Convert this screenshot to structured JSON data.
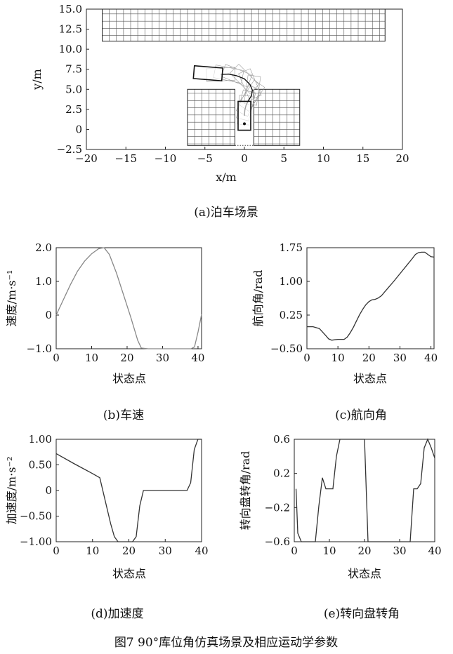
{
  "figure_caption": "图7   90°库位角仿真场景及相应运动学参数",
  "chart_data": [
    {
      "id": "a",
      "type": "diagram",
      "caption": "(a)泊车场景",
      "xlabel": "x/m",
      "ylabel": "y/m",
      "xlim": [
        -20,
        20
      ],
      "ylim": [
        -2.5,
        15
      ],
      "xticks": [
        -20,
        -15,
        -10,
        -5,
        0,
        5,
        10,
        15,
        20
      ],
      "yticks": [
        -2.5,
        0,
        2.5,
        5.0,
        7.5,
        10.0,
        12.5,
        15.0
      ],
      "ytick_labels": [
        "−2.5",
        "0",
        "2.5",
        "5.0",
        "7.5",
        "10.0",
        "12.5",
        "15.0"
      ],
      "xtick_labels": [
        "−20",
        "−15",
        "−10",
        "−5",
        "0",
        "5",
        "10",
        "15",
        "20"
      ],
      "obstacles": [
        {
          "name": "upper-obstacle",
          "x": [
            -18,
            17.8
          ],
          "y": [
            11.0,
            15.0
          ]
        },
        {
          "name": "left-slot-obstacle",
          "x": [
            -7.2,
            -1.2
          ],
          "y": [
            -2.0,
            5.0
          ]
        },
        {
          "name": "right-slot-obstacle",
          "x": [
            1.2,
            7.0
          ],
          "y": [
            -2.0,
            5.0
          ]
        }
      ],
      "slot": {
        "x": [
          -1.2,
          1.2
        ],
        "y": [
          -2.0,
          5.0
        ]
      },
      "start_pose": {
        "x": -4.6,
        "y": 7.0,
        "heading": -0.08,
        "length": 3.6,
        "width": 1.6
      },
      "goal_pose": {
        "x": 0.0,
        "y": 1.7,
        "heading": 1.5708,
        "length": 3.6,
        "width": 1.6
      },
      "path": {
        "x": [
          -3.0,
          -2.0,
          -1.0,
          0.0,
          0.7,
          1.0,
          0.9,
          0.5,
          0.2,
          0.05,
          0.0
        ],
        "y": [
          6.85,
          6.9,
          6.7,
          6.3,
          5.6,
          4.9,
          4.2,
          3.6,
          3.0,
          2.4,
          1.7
        ]
      }
    },
    {
      "id": "b",
      "type": "line",
      "caption": "(b)车速",
      "xlabel": "状态点",
      "ylabel": "速度/m·s⁻¹",
      "xlim": [
        0,
        41
      ],
      "ylim": [
        -1.0,
        2.0
      ],
      "xticks": [
        0,
        10,
        20,
        30,
        40
      ],
      "yticks": [
        -1.0,
        0,
        1.0,
        2.0
      ],
      "ytick_labels": [
        "−1.0",
        "0",
        "1.0",
        "2.0"
      ],
      "color": "#888888",
      "x": [
        0,
        2,
        4,
        6,
        8,
        10,
        12,
        13.5,
        15,
        17,
        19,
        21,
        23,
        24,
        26,
        28,
        30,
        32,
        34,
        36,
        38,
        39,
        40,
        41
      ],
      "y": [
        0,
        0.45,
        0.9,
        1.3,
        1.6,
        1.82,
        1.97,
        2.0,
        1.8,
        1.25,
        0.6,
        -0.05,
        -0.75,
        -0.98,
        -1.0,
        -1.0,
        -1.0,
        -1.0,
        -1.0,
        -1.0,
        -1.0,
        -0.95,
        -0.5,
        0.02
      ]
    },
    {
      "id": "c",
      "type": "line",
      "caption": "(c)航向角",
      "xlabel": "状态点",
      "ylabel": "航向角/rad",
      "xlim": [
        0,
        41
      ],
      "ylim": [
        -0.5,
        1.75
      ],
      "xticks": [
        0,
        10,
        20,
        30,
        40
      ],
      "yticks": [
        -0.5,
        0.25,
        1.0,
        1.75
      ],
      "ytick_labels": [
        "−0.50",
        "0.25",
        "1.00",
        "1.75"
      ],
      "color": "#333333",
      "x": [
        0,
        2,
        4,
        6,
        7,
        8,
        9,
        10,
        11,
        12,
        13,
        14,
        15,
        16,
        17,
        18,
        19,
        20,
        21,
        22,
        23,
        24,
        26,
        28,
        30,
        32,
        34,
        35,
        36,
        37,
        38,
        39,
        40,
        41
      ],
      "y": [
        -0.01,
        -0.01,
        -0.05,
        -0.2,
        -0.28,
        -0.31,
        -0.3,
        -0.29,
        -0.29,
        -0.29,
        -0.24,
        -0.14,
        -0.02,
        0.12,
        0.26,
        0.38,
        0.48,
        0.55,
        0.59,
        0.6,
        0.63,
        0.68,
        0.84,
        1.0,
        1.17,
        1.34,
        1.51,
        1.6,
        1.64,
        1.65,
        1.65,
        1.6,
        1.55,
        1.54
      ]
    },
    {
      "id": "d",
      "type": "line",
      "caption": "(d)加速度",
      "xlabel": "状态点",
      "ylabel": "加速度/m·s⁻²",
      "xlim": [
        0,
        40
      ],
      "ylim": [
        -1.0,
        1.0
      ],
      "xticks": [
        0,
        10,
        20,
        30,
        40
      ],
      "yticks": [
        -1.0,
        -0.5,
        0,
        0.5,
        1.0
      ],
      "ytick_labels": [
        "−1.00",
        "−0.50",
        "0",
        "0.50",
        "1.00"
      ],
      "color": "#333333",
      "x": [
        0,
        5,
        10,
        12,
        14,
        15,
        16,
        17,
        18,
        19,
        20,
        21,
        22,
        23,
        24,
        26,
        28,
        30,
        32,
        34,
        36,
        37,
        38,
        39,
        40
      ],
      "y": [
        0.72,
        0.52,
        0.33,
        0.25,
        -0.35,
        -0.65,
        -0.9,
        -1.0,
        -1.0,
        -1.0,
        -1.0,
        -1.0,
        -0.9,
        -0.3,
        0.0,
        0.0,
        0.0,
        0.0,
        0.0,
        0.0,
        0.0,
        0.15,
        0.8,
        1.0,
        1.0
      ]
    },
    {
      "id": "e",
      "type": "line",
      "caption": "(e)转向盘转角",
      "xlabel": "状态点",
      "ylabel": "转向盘转角/rad",
      "xlim": [
        0,
        40
      ],
      "ylim": [
        -0.6,
        0.6
      ],
      "xticks": [
        0,
        10,
        20,
        30,
        40
      ],
      "yticks": [
        -0.6,
        -0.2,
        0.2,
        0.6
      ],
      "ytick_labels": [
        "−0.6",
        "−0.2",
        "0.2",
        "0.6"
      ],
      "color": "#333333",
      "x": [
        0.5,
        1,
        2,
        3,
        4,
        5,
        6,
        7,
        8,
        9,
        10,
        11,
        12,
        13,
        14,
        15,
        16,
        17,
        18,
        19,
        20,
        21,
        22,
        24,
        26,
        28,
        30,
        32,
        33,
        34,
        35,
        36,
        37,
        38,
        39,
        40
      ],
      "y": [
        0.02,
        -0.5,
        -0.6,
        -0.6,
        -0.6,
        -0.6,
        -0.6,
        -0.18,
        0.15,
        0.02,
        0.02,
        0.02,
        0.4,
        0.6,
        0.6,
        0.6,
        0.6,
        0.6,
        0.6,
        0.6,
        0.6,
        -0.6,
        -0.6,
        -0.6,
        -0.6,
        -0.6,
        -0.6,
        -0.6,
        -0.6,
        0.02,
        0.02,
        0.08,
        0.5,
        0.6,
        0.5,
        0.38
      ]
    }
  ]
}
